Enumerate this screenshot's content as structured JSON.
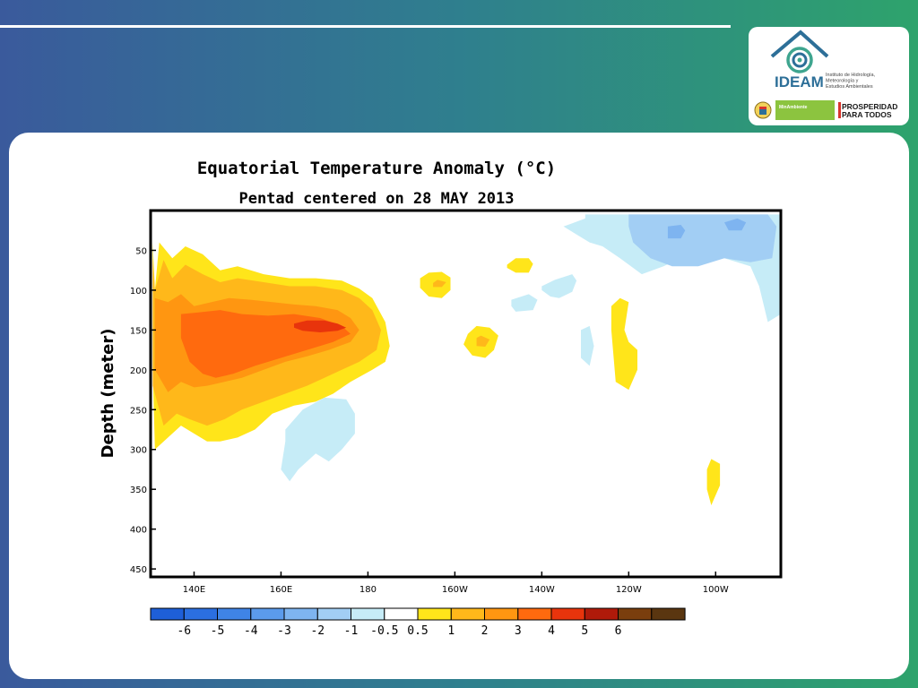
{
  "colors": {
    "levels": [
      "#1e5fd8",
      "#2b6fe0",
      "#3f84e6",
      "#5b9bec",
      "#7eb4f0",
      "#a2cef4",
      "#c6ecf7",
      "#ffffff",
      "#ffe51a",
      "#ffb81a",
      "#ff9611",
      "#ff6a0e",
      "#e8340c",
      "#b01a0a",
      "#7a3e0d",
      "#5a3610"
    ]
  },
  "logo": {
    "name": "IDEAM",
    "subtitle_lines": [
      "Instituto de Hidrología,",
      "Meteorología y",
      "Estudios Ambientales"
    ],
    "ministry": "MinAmbiente",
    "slogan_lines": [
      "PROSPERIDAD",
      "PARA TODOS"
    ],
    "icons": [
      "house-wave-emblem",
      "colombia-coat-of-arms"
    ]
  },
  "chart_data": {
    "type": "heatmap",
    "title": "Equatorial Temperature Anomaly (°C)",
    "subtitle": "Pentad centered on 28 MAY 2013",
    "xlabel": "",
    "ylabel": "Depth (meter)",
    "xlim": [
      130,
      275
    ],
    "ylim": [
      0,
      460
    ],
    "y_reversed": true,
    "x_ticks": [
      {
        "value": 140,
        "label": "140E"
      },
      {
        "value": 160,
        "label": "160E"
      },
      {
        "value": 180,
        "label": "180"
      },
      {
        "value": 200,
        "label": "160W"
      },
      {
        "value": 220,
        "label": "140W"
      },
      {
        "value": 240,
        "label": "120W"
      },
      {
        "value": 260,
        "label": "100W"
      }
    ],
    "y_ticks": [
      {
        "value": 50,
        "label": "50"
      },
      {
        "value": 100,
        "label": "100"
      },
      {
        "value": 150,
        "label": "150"
      },
      {
        "value": 200,
        "label": "200"
      },
      {
        "value": 250,
        "label": "250"
      },
      {
        "value": 300,
        "label": "300"
      },
      {
        "value": 350,
        "label": "350"
      },
      {
        "value": 400,
        "label": "400"
      },
      {
        "value": 450,
        "label": "450"
      }
    ],
    "colorbar": {
      "boundaries": [
        "-6",
        "-5",
        "-4",
        "-3",
        "-2",
        "-1",
        "-0.5",
        "0.5",
        "1",
        "2",
        "3",
        "4",
        "5",
        "6"
      ]
    },
    "contours": [
      {
        "level": 0.5,
        "x": [
          130.5,
          131,
          132,
          135,
          138,
          142,
          146,
          150,
          156,
          162,
          168,
          174,
          178,
          181,
          184,
          185,
          184,
          181,
          176,
          172,
          168,
          163,
          158,
          154,
          150,
          146,
          143,
          140,
          137,
          134,
          131,
          130.5
        ],
        "y": [
          40,
          100,
          40,
          60,
          45,
          55,
          75,
          70,
          80,
          85,
          85,
          88,
          98,
          110,
          140,
          170,
          190,
          200,
          215,
          230,
          240,
          245,
          255,
          275,
          285,
          290,
          290,
          280,
          270,
          285,
          300,
          200
        ]
      },
      {
        "level": 1,
        "x": [
          130.5,
          131,
          133,
          135,
          138,
          142,
          146,
          150,
          156,
          162,
          168,
          174,
          178,
          181,
          183,
          182,
          178,
          174,
          170,
          166,
          161,
          156,
          151,
          147,
          143,
          139,
          136,
          133,
          130.5
        ],
        "y": [
          60,
          100,
          62,
          85,
          68,
          80,
          90,
          85,
          90,
          95,
          95,
          100,
          110,
          125,
          150,
          175,
          190,
          200,
          210,
          220,
          230,
          240,
          250,
          262,
          270,
          262,
          255,
          270,
          220
        ]
      },
      {
        "level": 2,
        "x": [
          131,
          134,
          137,
          140,
          144,
          148,
          153,
          158,
          163,
          168,
          173,
          176,
          178,
          176,
          171,
          166,
          161,
          156,
          151,
          147,
          143,
          140,
          137,
          134,
          131
        ],
        "y": [
          110,
          115,
          105,
          120,
          115,
          110,
          112,
          115,
          118,
          120,
          125,
          135,
          150,
          165,
          175,
          183,
          190,
          200,
          210,
          215,
          220,
          222,
          215,
          228,
          200
        ]
      },
      {
        "level": 3,
        "x": [
          137,
          141,
          146,
          151,
          157,
          163,
          169,
          174,
          176,
          172,
          166,
          160,
          154,
          149,
          145,
          142,
          139,
          137
        ],
        "y": [
          130,
          128,
          125,
          130,
          132,
          130,
          135,
          145,
          155,
          165,
          175,
          185,
          195,
          205,
          210,
          205,
          190,
          160
        ]
      },
      {
        "level": 4,
        "x": [
          163,
          166,
          170,
          173,
          175,
          173,
          169,
          165,
          163
        ],
        "y": [
          142,
          138,
          138,
          142,
          147,
          151,
          153,
          151,
          147
        ]
      },
      {
        "level": 0.5,
        "x": [
          192,
          194,
          197,
          199,
          199,
          197,
          194,
          192
        ],
        "y": [
          85,
          78,
          77,
          84,
          100,
          110,
          108,
          97
        ]
      },
      {
        "level": 1,
        "x": [
          195,
          196,
          198,
          197,
          195
        ],
        "y": [
          91,
          87,
          90,
          96,
          96
        ]
      },
      {
        "level": 0.5,
        "x": [
          203,
          205,
          208,
          210,
          209,
          207,
          204,
          202
        ],
        "y": [
          155,
          145,
          147,
          157,
          175,
          185,
          182,
          168
        ]
      },
      {
        "level": 1,
        "x": [
          205,
          206,
          208,
          207,
          205
        ],
        "y": [
          160,
          157,
          162,
          171,
          170
        ]
      },
      {
        "level": 0.5,
        "x": [
          212,
          214,
          217,
          218,
          217,
          214,
          212
        ],
        "y": [
          68,
          60,
          60,
          67,
          78,
          78,
          72
        ]
      },
      {
        "level": 0.5,
        "x": [
          236,
          238,
          240,
          239,
          240,
          242,
          242,
          240,
          237,
          236
        ],
        "y": [
          120,
          110,
          115,
          150,
          165,
          175,
          200,
          225,
          215,
          150
        ]
      },
      {
        "level": 0.5,
        "x": [
          258,
          259,
          261,
          261,
          259,
          258
        ],
        "y": [
          325,
          312,
          318,
          345,
          370,
          350
        ]
      },
      {
        "level": -0.5,
        "x": [
          230,
          237,
          244,
          251,
          258,
          264,
          270,
          275,
          275,
          272,
          270,
          268,
          262,
          254,
          248,
          243,
          238,
          234,
          231,
          228,
          225,
          230
        ],
        "y": [
          5,
          5,
          5,
          5,
          5,
          5,
          5,
          5,
          130,
          140,
          95,
          70,
          60,
          55,
          70,
          80,
          60,
          45,
          40,
          30,
          20,
          10
        ]
      },
      {
        "level": -1,
        "x": [
          240,
          250,
          262,
          272,
          274,
          273,
          268,
          262,
          256,
          250,
          245,
          241,
          240
        ],
        "y": [
          5,
          5,
          5,
          5,
          20,
          60,
          65,
          60,
          70,
          70,
          60,
          40,
          20
        ]
      },
      {
        "level": -2,
        "x": [
          249,
          252,
          253,
          252,
          249
        ],
        "y": [
          20,
          18,
          25,
          35,
          35
        ]
      },
      {
        "level": -2,
        "x": [
          262,
          265,
          267,
          266,
          263
        ],
        "y": [
          15,
          10,
          15,
          25,
          25
        ]
      },
      {
        "level": -0.5,
        "x": [
          220,
          223,
          227,
          228,
          227,
          224,
          222,
          220
        ],
        "y": [
          95,
          87,
          80,
          88,
          102,
          110,
          108,
          100
        ]
      },
      {
        "level": -0.5,
        "x": [
          213,
          217,
          219,
          218,
          214,
          213
        ],
        "y": [
          112,
          105,
          112,
          125,
          127,
          120
        ]
      },
      {
        "level": -0.5,
        "x": [
          229,
          231,
          232,
          231,
          229
        ],
        "y": [
          150,
          145,
          170,
          195,
          185
        ]
      },
      {
        "level": -0.5,
        "x": [
          161,
          165,
          170,
          175,
          177,
          177,
          174,
          171,
          168,
          164,
          162,
          160,
          161
        ],
        "y": [
          275,
          250,
          235,
          237,
          255,
          280,
          300,
          315,
          305,
          325,
          340,
          325,
          290
        ]
      }
    ]
  }
}
